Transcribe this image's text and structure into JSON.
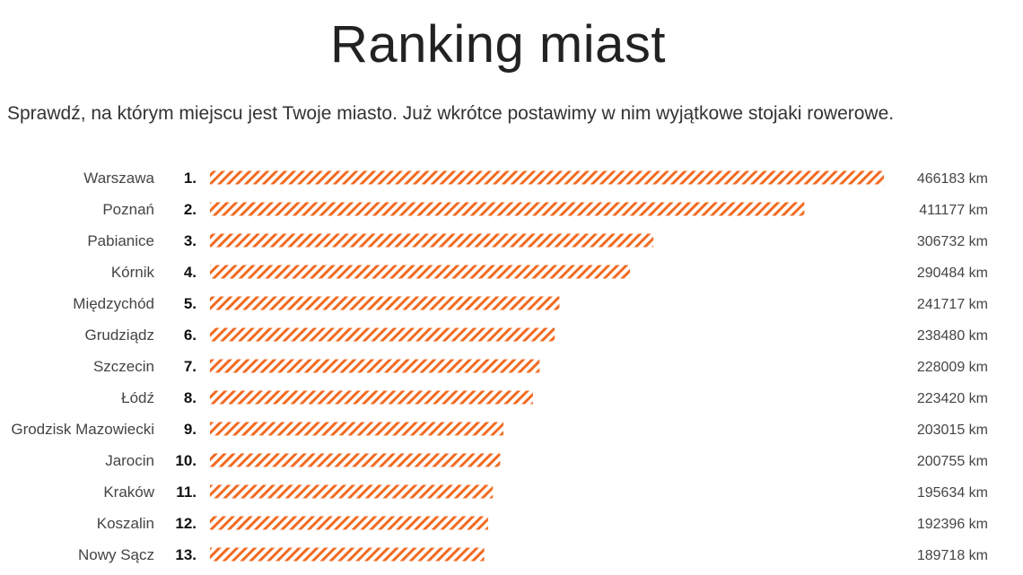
{
  "header": {
    "title": "Ranking miast",
    "subtitle": "Sprawdź, na którym miejscu jest Twoje miasto. Już wkrótce postawimy w nim wyjątkowe stojaki rowerowe."
  },
  "colors": {
    "bar_stripe": "#f26a21",
    "text": "#333333"
  },
  "chart_data": {
    "type": "bar",
    "orientation": "horizontal",
    "title": "Ranking miast",
    "unit": "km",
    "xlim": [
      0,
      466183
    ],
    "grid": false,
    "bar_pattern": "diagonal-hatch",
    "categories": [
      "Warszawa",
      "Poznań",
      "Pabianice",
      "Kórnik",
      "Międzychód",
      "Grudziądz",
      "Szczecin",
      "Łódź",
      "Grodzisk Mazowiecki",
      "Jarocin",
      "Kraków",
      "Koszalin",
      "Nowy Sącz"
    ],
    "ranks": [
      "1.",
      "2.",
      "3.",
      "4.",
      "5.",
      "6.",
      "7.",
      "8.",
      "9.",
      "10.",
      "11.",
      "12.",
      "13."
    ],
    "values": [
      466183,
      411177,
      306732,
      290484,
      241717,
      238480,
      228009,
      223420,
      203015,
      200755,
      195634,
      192396,
      189718
    ],
    "value_labels": [
      "466183 km",
      "411177 km",
      "306732 km",
      "290484 km",
      "241717 km",
      "238480 km",
      "228009 km",
      "223420 km",
      "203015 km",
      "200755 km",
      "195634 km",
      "192396 km",
      "189718 km"
    ]
  }
}
